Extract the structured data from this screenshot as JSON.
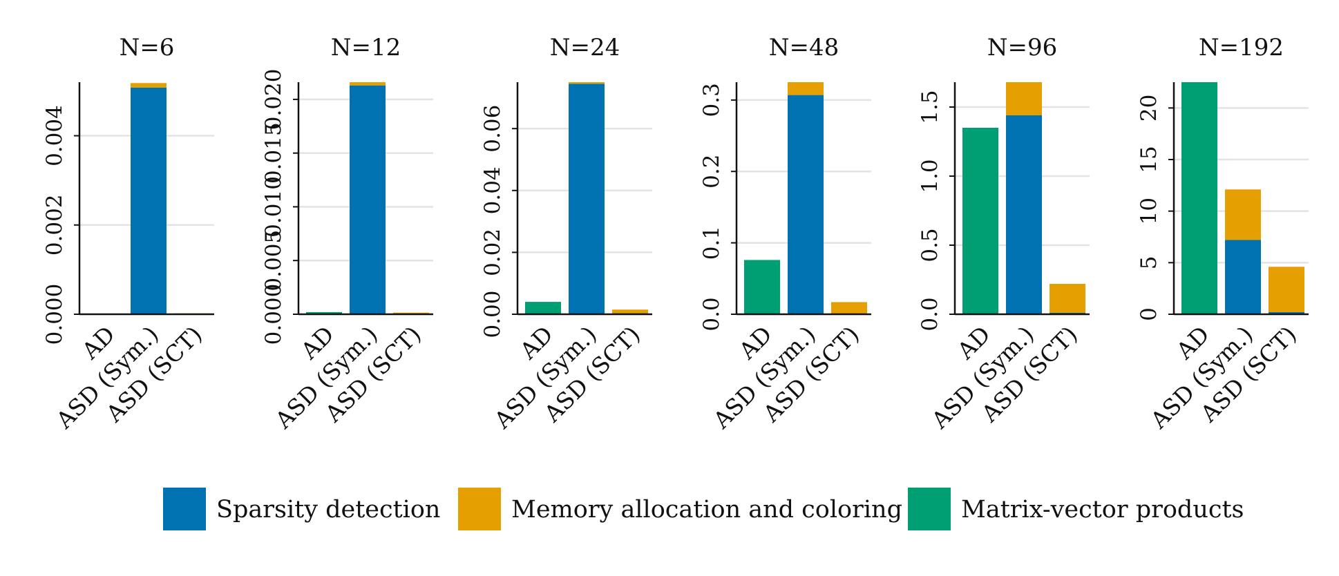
{
  "legend": [
    {
      "name": "Sparsity detection",
      "color": "#0072b2"
    },
    {
      "name": "Memory allocation and coloring",
      "color": "#e69f00"
    },
    {
      "name": "Matrix-vector products",
      "color": "#009e73"
    }
  ],
  "chart_data": [
    {
      "type": "bar",
      "stacked": true,
      "title": "N=6",
      "categories": [
        "AD",
        "ASD (Sym.)",
        "ASD (SCT)"
      ],
      "ylim": [
        0,
        0.0052
      ],
      "yticks": [
        0,
        0.002,
        0.004
      ],
      "ytick_labels": [
        "0.000",
        "0.002",
        "0.004"
      ],
      "series": [
        {
          "name": "Sparsity detection",
          "values": [
            0,
            0.00508,
            1e-05
          ]
        },
        {
          "name": "Memory allocation and coloring",
          "values": [
            0,
            0.0001,
            1e-05
          ]
        },
        {
          "name": "Matrix-vector products",
          "values": [
            1e-05,
            0,
            0
          ]
        }
      ]
    },
    {
      "type": "bar",
      "stacked": true,
      "title": "N=12",
      "categories": [
        "AD",
        "ASD (Sym.)",
        "ASD (SCT)"
      ],
      "ylim": [
        0,
        0.0216
      ],
      "yticks": [
        0,
        0.005,
        0.01,
        0.015,
        0.02
      ],
      "ytick_labels": [
        "0.000",
        "0.005",
        "0.010",
        "0.015",
        "0.020"
      ],
      "series": [
        {
          "name": "Sparsity detection",
          "values": [
            0,
            0.0213,
            5e-05
          ]
        },
        {
          "name": "Memory allocation and coloring",
          "values": [
            0,
            0.0003,
            0.0001
          ]
        },
        {
          "name": "Matrix-vector products",
          "values": [
            0.0002,
            0,
            0
          ]
        }
      ]
    },
    {
      "type": "bar",
      "stacked": true,
      "title": "N=24",
      "categories": [
        "AD",
        "ASD (Sym.)",
        "ASD (SCT)"
      ],
      "ylim": [
        0,
        0.075
      ],
      "yticks": [
        0,
        0.02,
        0.04,
        0.06
      ],
      "ytick_labels": [
        "0.00",
        "0.02",
        "0.04",
        "0.06"
      ],
      "series": [
        {
          "name": "Sparsity detection",
          "values": [
            0,
            0.0745,
            0.0003
          ]
        },
        {
          "name": "Memory allocation and coloring",
          "values": [
            0,
            0.0005,
            0.0012
          ]
        },
        {
          "name": "Matrix-vector products",
          "values": [
            0.004,
            0,
            0
          ]
        }
      ]
    },
    {
      "type": "bar",
      "stacked": true,
      "title": "N=48",
      "categories": [
        "AD",
        "ASD (Sym.)",
        "ASD (SCT)"
      ],
      "ylim": [
        0,
        0.325
      ],
      "yticks": [
        0,
        0.1,
        0.2,
        0.3
      ],
      "ytick_labels": [
        "0.0",
        "0.1",
        "0.2",
        "0.3"
      ],
      "series": [
        {
          "name": "Sparsity detection",
          "values": [
            0,
            0.307,
            0.001
          ]
        },
        {
          "name": "Memory allocation and coloring",
          "values": [
            0,
            0.018,
            0.016
          ]
        },
        {
          "name": "Matrix-vector products",
          "values": [
            0.076,
            0,
            0
          ]
        }
      ]
    },
    {
      "type": "bar",
      "stacked": true,
      "title": "N=96",
      "categories": [
        "AD",
        "ASD (Sym.)",
        "ASD (SCT)"
      ],
      "ylim": [
        0,
        1.68
      ],
      "yticks": [
        0,
        0.5,
        1.0,
        1.5
      ],
      "ytick_labels": [
        "0.0",
        "0.5",
        "1.0",
        "1.5"
      ],
      "series": [
        {
          "name": "Sparsity detection",
          "values": [
            0,
            1.44,
            0.01
          ]
        },
        {
          "name": "Memory allocation and coloring",
          "values": [
            0,
            0.24,
            0.21
          ]
        },
        {
          "name": "Matrix-vector products",
          "values": [
            1.35,
            0,
            0
          ]
        }
      ]
    },
    {
      "type": "bar",
      "stacked": true,
      "title": "N=192",
      "categories": [
        "AD",
        "ASD (Sym.)",
        "ASD (SCT)"
      ],
      "ylim": [
        0,
        22.5
      ],
      "yticks": [
        0,
        5,
        10,
        15,
        20
      ],
      "ytick_labels": [
        "0",
        "5",
        "10",
        "15",
        "20"
      ],
      "series": [
        {
          "name": "Sparsity detection",
          "values": [
            0,
            7.2,
            0.2
          ]
        },
        {
          "name": "Memory allocation and coloring",
          "values": [
            0,
            4.9,
            4.4
          ]
        },
        {
          "name": "Matrix-vector products",
          "values": [
            22.5,
            0,
            0
          ]
        }
      ]
    }
  ]
}
